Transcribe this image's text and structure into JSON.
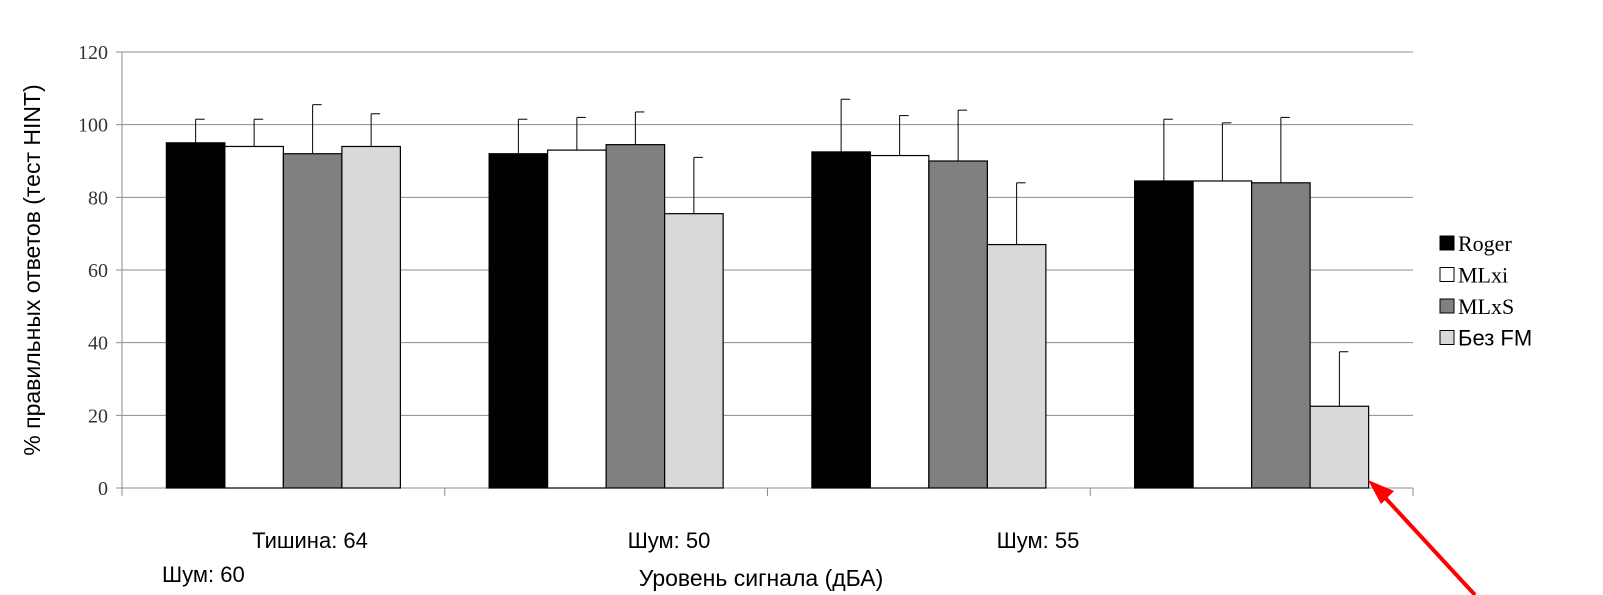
{
  "chart_data": {
    "type": "bar",
    "title": "",
    "ylabel": "% правильных ответов (тест HINT)",
    "xlabel": "Уровень сигнала (дБА)",
    "categories": [
      "Тишина: 64",
      "Шум: 50",
      "Шум: 55",
      ""
    ],
    "extra_label": "Шум: 60",
    "ylim": [
      0,
      120
    ],
    "yticks": [
      0,
      20,
      40,
      60,
      80,
      100,
      120
    ],
    "grid": true,
    "legend_position": "right",
    "series": [
      {
        "name": "Roger",
        "color": "#000000",
        "values": [
          95,
          92,
          92.5,
          84.5
        ],
        "errors": [
          6.5,
          9.5,
          14.5,
          17
        ]
      },
      {
        "name": "MLxi",
        "color": "#ffffff",
        "values": [
          94,
          93,
          91.5,
          84.5
        ],
        "errors": [
          7.5,
          9,
          11,
          16
        ]
      },
      {
        "name": "MLxS",
        "color": "#808080",
        "values": [
          92,
          94.5,
          90,
          84
        ],
        "errors": [
          13.5,
          9,
          14,
          18
        ]
      },
      {
        "name": "Без FM",
        "color": "#d9d9d9",
        "values": [
          94,
          75.5,
          67,
          22.5
        ],
        "errors": [
          9,
          15.5,
          17,
          15
        ]
      }
    ]
  },
  "annotation": {
    "arrow_color": "#ff0000"
  }
}
